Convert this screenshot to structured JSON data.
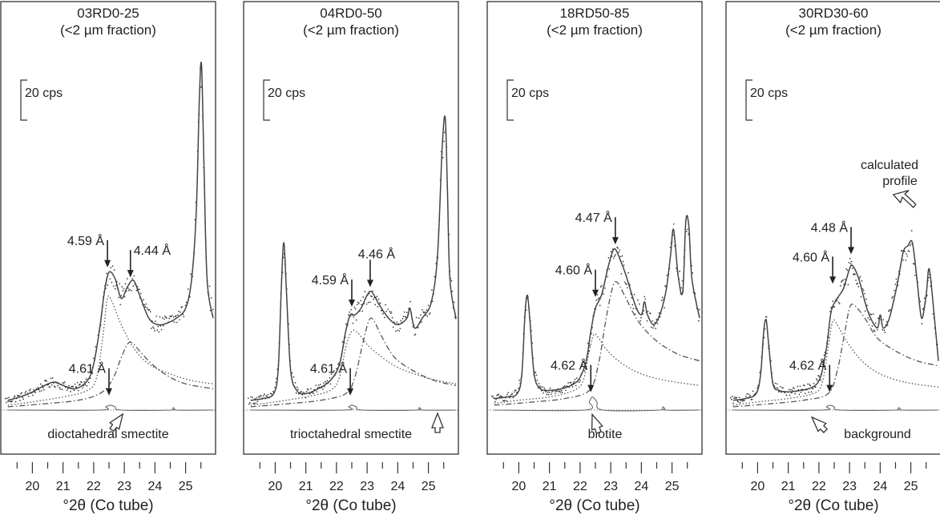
{
  "chart_data": [
    {
      "type": "line",
      "title": "03RD0-25",
      "subtitle": "(<2 µm fraction)",
      "scale_label": "20 cps",
      "xlabel": "°2θ (Co tube)",
      "x_ticks": [
        "20",
        "21",
        "22",
        "23",
        "24",
        "25"
      ],
      "xlim": [
        19.1,
        25.9
      ],
      "peaks": [
        {
          "label": "4.59 Å",
          "x": 22.45,
          "y": 84
        },
        {
          "label": "4.44 Å",
          "x": 23.2,
          "y": 78
        },
        {
          "label": "4.61 Å",
          "x": 22.5,
          "y": 6
        }
      ],
      "series": [
        {
          "style": "solid",
          "x": [
            19.2,
            19.6,
            20.0,
            20.4,
            20.7,
            21.0,
            21.4,
            21.8,
            22.0,
            22.2,
            22.35,
            22.5,
            22.7,
            22.9,
            23.1,
            23.3,
            23.5,
            23.8,
            24.1,
            24.4,
            24.7,
            25.0,
            25.2,
            25.35,
            25.45,
            25.52,
            25.6,
            25.7,
            25.9
          ],
          "y": [
            6,
            8,
            11,
            15,
            17,
            15,
            13,
            18,
            28,
            50,
            72,
            84,
            80,
            68,
            75,
            79,
            70,
            56,
            52,
            53,
            56,
            62,
            80,
            122,
            190,
            210,
            150,
            80,
            56
          ]
        },
        {
          "style": "dotted",
          "x": [
            19.2,
            20,
            21,
            21.8,
            22.1,
            22.3,
            22.45,
            22.6,
            22.9,
            23.3,
            23.8,
            24.5,
            25.2,
            25.9
          ],
          "y": [
            3,
            5,
            8,
            12,
            20,
            45,
            68,
            66,
            52,
            38,
            28,
            22,
            18,
            16
          ]
        },
        {
          "style": "dashed",
          "x": [
            19.2,
            20.5,
            21.5,
            22.2,
            22.6,
            22.9,
            23.1,
            23.25,
            23.5,
            23.9,
            24.4,
            25.0,
            25.9
          ],
          "y": [
            2,
            4,
            6,
            10,
            18,
            32,
            40,
            41,
            36,
            28,
            21,
            16,
            13
          ]
        },
        {
          "style": "small",
          "x": [
            19.2,
            22.2,
            22.4,
            22.55,
            22.7,
            22.9,
            24.5,
            24.6,
            24.7,
            25.9
          ],
          "y": [
            0,
            0,
            2,
            3,
            2,
            0,
            0,
            1.5,
            0,
            0
          ]
        }
      ],
      "annotation": "dioctahedral smectite"
    },
    {
      "type": "line",
      "title": "04RD0-50",
      "subtitle": "(<2 µm fraction)",
      "scale_label": "20 cps",
      "xlabel": "°2θ (Co tube)",
      "x_ticks": [
        "20",
        "21",
        "22",
        "23",
        "24",
        "25"
      ],
      "xlim": [
        19.1,
        25.9
      ],
      "peaks": [
        {
          "label": "4.46 Å",
          "x": 23.1,
          "y": 72
        },
        {
          "label": "4.59 Å",
          "x": 22.5,
          "y": 60
        },
        {
          "label": "4.61 Å",
          "x": 22.45,
          "y": 6
        }
      ],
      "series": [
        {
          "style": "solid",
          "x": [
            19.2,
            19.6,
            19.95,
            20.1,
            20.2,
            20.28,
            20.36,
            20.5,
            20.7,
            21.0,
            21.4,
            21.8,
            22.1,
            22.3,
            22.45,
            22.6,
            22.8,
            23.0,
            23.15,
            23.4,
            23.7,
            24.0,
            24.3,
            24.4,
            24.55,
            24.8,
            25.1,
            25.3,
            25.45,
            25.55,
            25.62,
            25.7,
            25.9
          ],
          "y": [
            6,
            7,
            10,
            25,
            75,
            102,
            75,
            25,
            12,
            10,
            13,
            18,
            28,
            48,
            58,
            58,
            62,
            70,
            72,
            64,
            56,
            52,
            56,
            62,
            50,
            56,
            66,
            95,
            160,
            178,
            135,
            80,
            56
          ]
        },
        {
          "style": "dotted",
          "x": [
            19.2,
            20,
            21,
            21.8,
            22.1,
            22.3,
            22.5,
            22.7,
            23.0,
            23.5,
            24.0,
            24.7,
            25.3,
            25.9
          ],
          "y": [
            3,
            5,
            8,
            12,
            20,
            38,
            48,
            47,
            40,
            32,
            26,
            21,
            18,
            16
          ]
        },
        {
          "style": "dashed",
          "x": [
            19.2,
            20.5,
            21.5,
            22.3,
            22.6,
            22.85,
            23.05,
            23.2,
            23.5,
            23.9,
            24.5,
            25.2,
            25.9
          ],
          "y": [
            2,
            4,
            6,
            10,
            20,
            40,
            54,
            55,
            44,
            32,
            24,
            18,
            15
          ]
        },
        {
          "style": "small",
          "x": [
            19.2,
            22.25,
            22.4,
            22.5,
            22.65,
            22.85,
            24.6,
            24.7,
            24.8,
            25.9
          ],
          "y": [
            0,
            0,
            2,
            3,
            2,
            0,
            0,
            1.5,
            0,
            0
          ]
        }
      ],
      "annotation": "trioctahedral smectite"
    },
    {
      "type": "line",
      "title": "18RD50-85",
      "subtitle": "(<2 µm fraction)",
      "scale_label": "20 cps",
      "xlabel": "°2θ (Co tube)",
      "x_ticks": [
        "20",
        "21",
        "22",
        "23",
        "24",
        "25"
      ],
      "xlim": [
        19.1,
        25.9
      ],
      "peaks": [
        {
          "label": "4.47 Å",
          "x": 23.15,
          "y": 98
        },
        {
          "label": "4.60 Å",
          "x": 22.5,
          "y": 66
        },
        {
          "label": "4.62 Å",
          "x": 22.35,
          "y": 8
        }
      ],
      "series": [
        {
          "style": "solid",
          "x": [
            19.2,
            19.6,
            19.95,
            20.1,
            20.2,
            20.28,
            20.36,
            20.5,
            20.7,
            21.0,
            21.4,
            21.8,
            22.0,
            22.2,
            22.35,
            22.5,
            22.7,
            22.9,
            23.05,
            23.15,
            23.3,
            23.5,
            23.8,
            24.0,
            24.1,
            24.2,
            24.4,
            24.6,
            24.8,
            24.95,
            25.05,
            25.2,
            25.35,
            25.45,
            25.55,
            25.65,
            25.9
          ],
          "y": [
            7,
            8,
            10,
            22,
            58,
            70,
            55,
            22,
            13,
            12,
            13,
            16,
            20,
            30,
            48,
            62,
            70,
            86,
            96,
            98,
            92,
            82,
            64,
            58,
            66,
            58,
            52,
            58,
            72,
            94,
            110,
            82,
            72,
            115,
            112,
            80,
            56
          ]
        },
        {
          "style": "dotted",
          "x": [
            19.2,
            20,
            21,
            21.8,
            22.1,
            22.3,
            22.45,
            22.6,
            22.9,
            23.4,
            24.0,
            24.8,
            25.9
          ],
          "y": [
            4,
            6,
            8,
            12,
            18,
            36,
            46,
            44,
            36,
            28,
            22,
            18,
            15
          ]
        },
        {
          "style": "dashed",
          "x": [
            19.2,
            20.5,
            21.5,
            22.3,
            22.6,
            22.85,
            23.05,
            23.2,
            23.5,
            23.9,
            24.5,
            25.2,
            25.9
          ],
          "y": [
            3,
            5,
            7,
            12,
            28,
            56,
            74,
            78,
            68,
            54,
            42,
            34,
            30
          ]
        },
        {
          "style": "small",
          "x": [
            19.2,
            22.15,
            22.3,
            22.4,
            22.55,
            22.75,
            24.6,
            24.7,
            24.8,
            25.9
          ],
          "y": [
            0,
            0,
            5,
            8,
            5,
            0,
            0,
            2,
            0,
            0
          ]
        }
      ],
      "annotation": "biotite"
    },
    {
      "type": "line",
      "title": "30RD30-60",
      "subtitle": "(<2 µm fraction)",
      "scale_label": "20 cps",
      "xlabel": "°2θ (Co tube)",
      "x_ticks": [
        "20",
        "21",
        "22",
        "23",
        "24",
        "25"
      ],
      "xlim": [
        19.1,
        25.9
      ],
      "peaks": [
        {
          "label": "4.48 Å",
          "x": 23.05,
          "y": 92
        },
        {
          "label": "4.60 Å",
          "x": 22.45,
          "y": 74
        },
        {
          "label": "4.62 Å",
          "x": 22.35,
          "y": 8
        }
      ],
      "series": [
        {
          "style": "solid",
          "x": [
            19.2,
            19.6,
            19.95,
            20.1,
            20.2,
            20.28,
            20.36,
            20.5,
            20.7,
            21.0,
            21.4,
            21.8,
            22.05,
            22.25,
            22.4,
            22.6,
            22.8,
            23.0,
            23.1,
            23.3,
            23.6,
            23.9,
            24.0,
            24.1,
            24.3,
            24.55,
            24.75,
            24.9,
            25.05,
            25.2,
            25.35,
            25.5,
            25.6,
            25.75,
            25.9
          ],
          "y": [
            6,
            7,
            10,
            22,
            48,
            55,
            40,
            16,
            12,
            11,
            12,
            14,
            20,
            38,
            60,
            68,
            74,
            86,
            88,
            80,
            60,
            50,
            58,
            50,
            56,
            76,
            96,
            100,
            102,
            80,
            56,
            70,
            86,
            60,
            30
          ]
        },
        {
          "style": "dotted",
          "x": [
            19.2,
            20,
            21,
            21.8,
            22.1,
            22.3,
            22.45,
            22.6,
            22.9,
            23.4,
            24.0,
            24.8,
            25.9
          ],
          "y": [
            3,
            5,
            7,
            10,
            16,
            38,
            54,
            52,
            42,
            30,
            22,
            17,
            14
          ]
        },
        {
          "style": "dashed",
          "x": [
            19.2,
            20.5,
            21.5,
            22.3,
            22.6,
            22.85,
            23.0,
            23.15,
            23.5,
            23.9,
            24.5,
            25.2,
            25.9
          ],
          "y": [
            2,
            4,
            6,
            10,
            24,
            48,
            62,
            64,
            56,
            44,
            36,
            30,
            27
          ]
        },
        {
          "style": "small",
          "x": [
            19.2,
            22.1,
            22.25,
            22.35,
            22.5,
            22.7,
            24.5,
            24.6,
            24.7,
            25.9
          ],
          "y": [
            0,
            0,
            2,
            3,
            2,
            0,
            0,
            1.5,
            0,
            0
          ]
        }
      ],
      "annotation": "background",
      "annotation2": "calculated profile"
    }
  ],
  "colors": {
    "line": "#444444",
    "frame": "#333333",
    "background": "#ffffff"
  }
}
